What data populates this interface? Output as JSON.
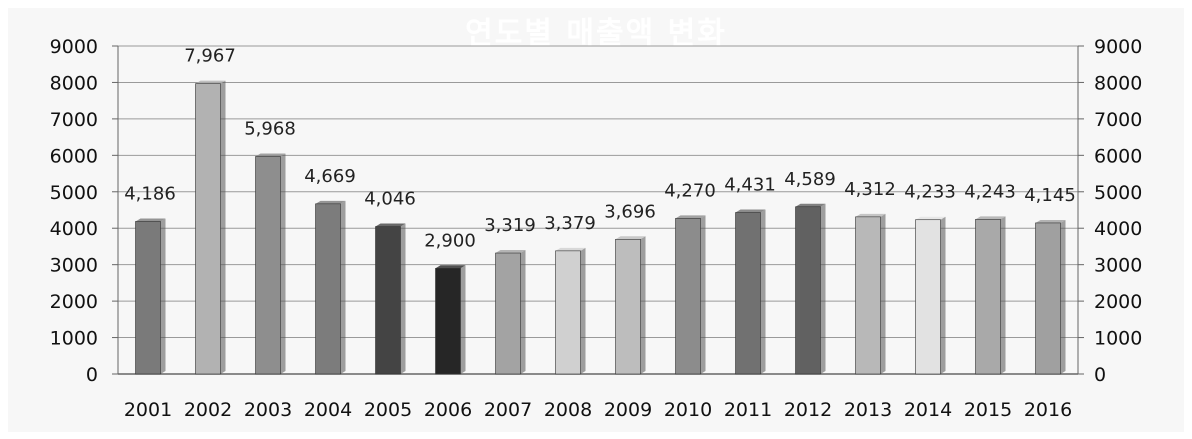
{
  "chart_data": {
    "type": "bar",
    "title": "연도별 매출액 변화",
    "categories": [
      "2001",
      "2002",
      "2003",
      "2004",
      "2005",
      "2006",
      "2007",
      "2008",
      "2009",
      "2010",
      "2011",
      "2012",
      "2013",
      "2014",
      "2015",
      "2016"
    ],
    "values": [
      4186,
      7967,
      5968,
      4669,
      4046,
      2900,
      3319,
      3379,
      3696,
      4270,
      4431,
      4589,
      4312,
      4233,
      4243,
      4145
    ],
    "data_labels": [
      "4,186",
      "7,967",
      "5,968",
      "4,669",
      "4,046",
      "2,900",
      "3,319",
      "3,379",
      "3,696",
      "4,270",
      "4,431",
      "4,589",
      "4,312",
      "4,233",
      "4,243",
      "4,145"
    ],
    "bar_colors": [
      "#7a7a7a",
      "#b2b2b2",
      "#8e8e8e",
      "#7c7c7c",
      "#444444",
      "#262626",
      "#a3a3a3",
      "#d0d0d0",
      "#bdbdbd",
      "#8c8c8c",
      "#717171",
      "#616161",
      "#b8b8b8",
      "#e2e2e2",
      "#a9a9a9",
      "#a0a0a0"
    ],
    "ylim": [
      0,
      9000
    ],
    "yticks": [
      "0",
      "1000",
      "2000",
      "3000",
      "4000",
      "5000",
      "6000",
      "7000",
      "8000",
      "9000"
    ],
    "secondary_yticks": [
      "0",
      "1000",
      "2000",
      "3000",
      "4000",
      "5000",
      "6000",
      "7000",
      "8000",
      "9000"
    ],
    "grid": true,
    "legend": "none"
  }
}
